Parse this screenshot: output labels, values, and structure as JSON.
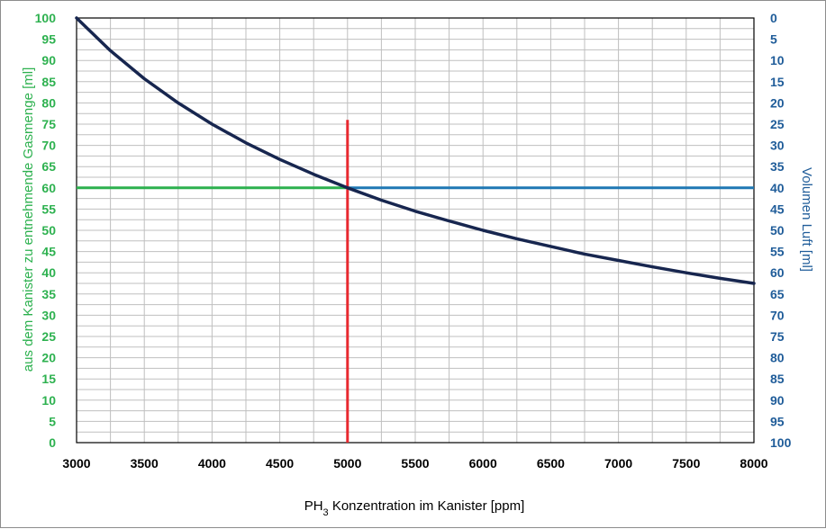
{
  "chart_data": {
    "type": "line",
    "title": "",
    "xlabel_main": "PH",
    "xlabel_sub": "3",
    "xlabel_rest": " Konzentration im Kanister [ppm]",
    "ylabel_left": "aus dem Kanister zu entnehmende Gasmenge  [ml]",
    "ylabel_right": "Volumen Luft [ml]",
    "xlim": [
      3000,
      8000
    ],
    "ylim_left": [
      0,
      100
    ],
    "ylim_right": [
      100,
      0
    ],
    "x_ticks": [
      "3000",
      "3500",
      "4000",
      "4500",
      "5000",
      "5500",
      "6000",
      "6500",
      "7000",
      "7500",
      "8000"
    ],
    "y_left_ticks": [
      "0",
      "5",
      "10",
      "15",
      "20",
      "25",
      "30",
      "35",
      "40",
      "45",
      "50",
      "55",
      "60",
      "65",
      "70",
      "75",
      "80",
      "85",
      "90",
      "95",
      "100"
    ],
    "y_right_ticks": [
      "0",
      "5",
      "10",
      "15",
      "20",
      "25",
      "30",
      "35",
      "40",
      "45",
      "50",
      "55",
      "60",
      "65",
      "70",
      "75",
      "80",
      "85",
      "90",
      "95",
      "100"
    ],
    "grid": true,
    "series": [
      {
        "x": [
          3000,
          3250,
          3500,
          3750,
          4000,
          4250,
          4500,
          4750,
          5000,
          5250,
          5500,
          5750,
          6000,
          6250,
          6500,
          6750,
          7000,
          7250,
          7500,
          7750,
          8000
        ],
        "y": [
          100,
          92.3,
          85.7,
          80.0,
          75.0,
          70.6,
          66.7,
          63.2,
          60.0,
          57.1,
          54.5,
          52.2,
          50.0,
          48.0,
          46.2,
          44.4,
          42.9,
          41.4,
          40.0,
          38.7,
          37.5
        ],
        "color": "#17264f"
      }
    ],
    "reference_lines": {
      "horizontal_left": {
        "y": 60,
        "x_from": 3000,
        "x_to": 5000,
        "color": "#2db14f"
      },
      "horizontal_right": {
        "y": 60,
        "x_from": 5000,
        "x_to": 8000,
        "color": "#1f78b4"
      },
      "vertical": {
        "x": 5000,
        "y_from": 0,
        "y_to": 76,
        "color": "#e8292f"
      }
    },
    "colors": {
      "left_axis": "#2db14f",
      "right_axis": "#1f5c99",
      "grid": "#bfbfbf"
    }
  }
}
